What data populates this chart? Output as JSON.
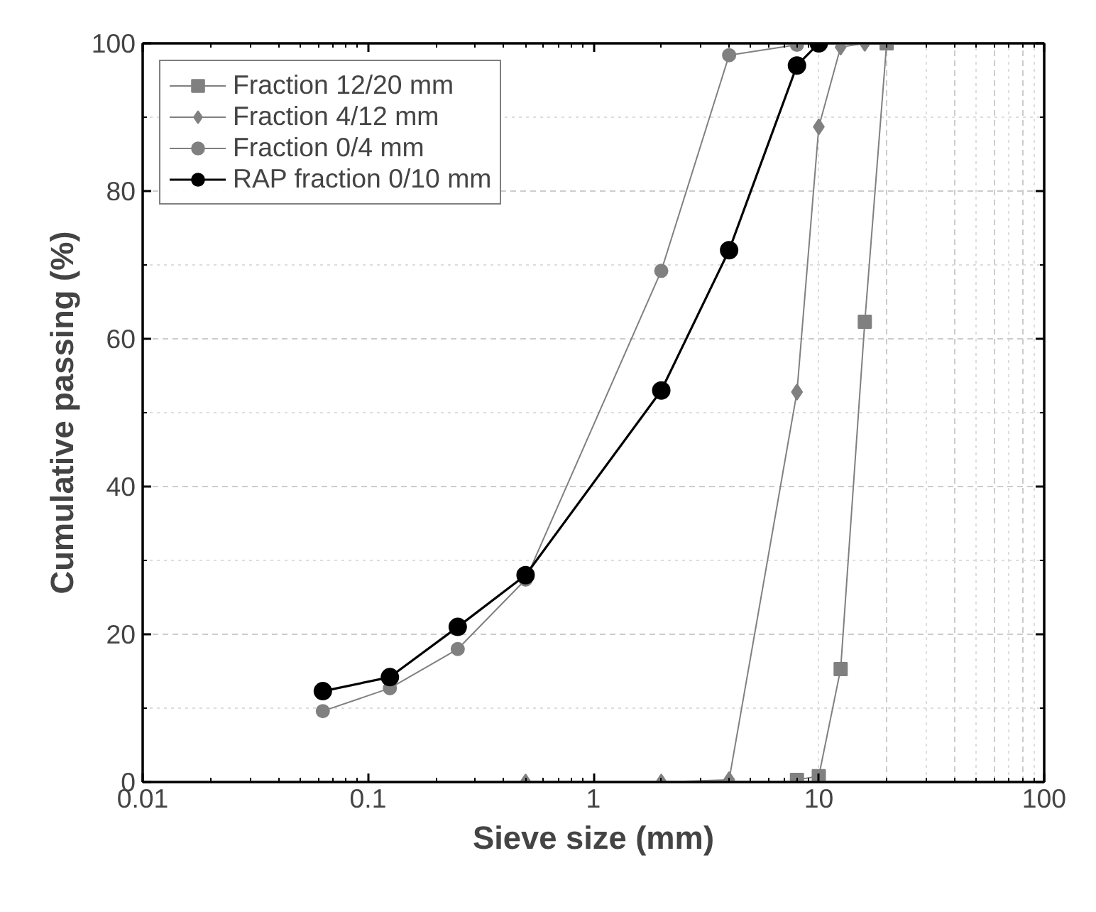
{
  "chart_data": {
    "type": "line",
    "xlabel": "Sieve size (mm)",
    "ylabel": "Cumulative passing (%)",
    "log": "x",
    "xlim": [
      0.01,
      100
    ],
    "xticks": [
      0.01,
      0.1,
      1,
      10,
      100
    ],
    "ylim": [
      0,
      100
    ],
    "yticks": [
      0,
      20,
      40,
      60,
      80,
      100
    ],
    "grid": true,
    "legend": "top left",
    "series": [
      {
        "name": "Fraction 12/20 mm",
        "color": "#808080",
        "marker": "square",
        "x": [
          8,
          10,
          12.5,
          16,
          20
        ],
        "values": [
          0.3,
          0.8,
          15.3,
          62.3,
          100
        ]
      },
      {
        "name": "Fraction 4/12 mm",
        "color": "#808080",
        "marker": "diamond",
        "x": [
          0.5,
          2,
          4,
          8,
          10,
          12.5,
          16
        ],
        "values": [
          0,
          0,
          0.3,
          52.8,
          88.7,
          99.5,
          100
        ]
      },
      {
        "name": "Fraction 0/4 mm",
        "color": "#808080",
        "marker": "circle",
        "x": [
          0.063,
          0.125,
          0.25,
          0.5,
          2,
          4,
          8
        ],
        "values": [
          9.6,
          12.7,
          18,
          27.4,
          69.2,
          98.4,
          99.8
        ]
      },
      {
        "name": "RAP fraction 0/10 mm",
        "color": "#000000",
        "marker": "circle",
        "x": [
          0.063,
          0.125,
          0.25,
          0.5,
          2,
          4,
          8,
          10
        ],
        "values": [
          12.3,
          14.2,
          21,
          28,
          53,
          72,
          97,
          100
        ]
      }
    ]
  }
}
